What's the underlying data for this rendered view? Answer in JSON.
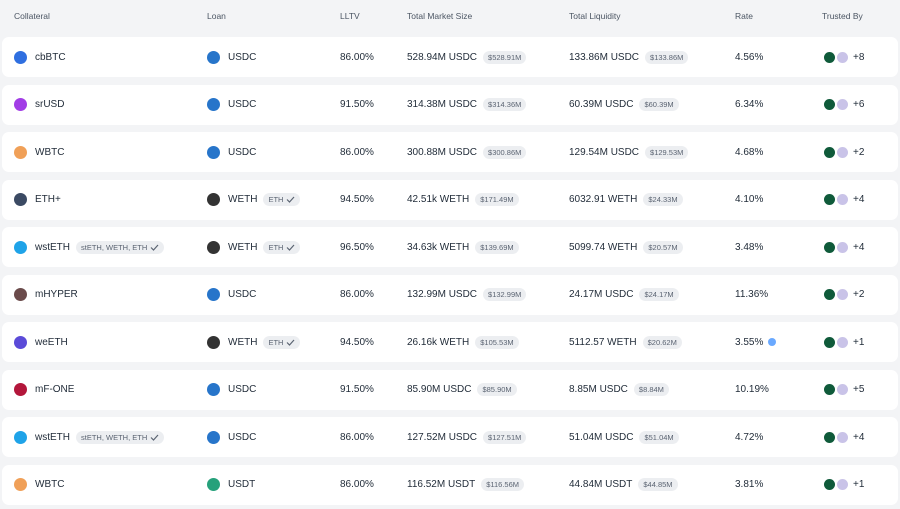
{
  "table": {
    "headers": [
      "Collateral",
      "Loan",
      "LLTV",
      "Total Market Size",
      "Total Liquidity",
      "Rate",
      "Trusted By"
    ],
    "rows": [
      {
        "collateral": "cbBTC",
        "loan": "USDC",
        "lltv": "86.00%",
        "market_size": "528.94M USDC",
        "market_size_usd": "$528.91M",
        "liquidity": "133.86M USDC",
        "liquidity_usd": "$133.86M",
        "rate": "4.56%",
        "trusted_more": "+8"
      },
      {
        "collateral": "srUSD",
        "loan": "USDC",
        "lltv": "91.50%",
        "market_size": "314.38M USDC",
        "market_size_usd": "$314.36M",
        "liquidity": "60.39M USDC",
        "liquidity_usd": "$60.39M",
        "rate": "6.34%",
        "trusted_more": "+6"
      },
      {
        "collateral": "WBTC",
        "loan": "USDC",
        "lltv": "86.00%",
        "market_size": "300.88M USDC",
        "market_size_usd": "$300.86M",
        "liquidity": "129.54M USDC",
        "liquidity_usd": "$129.53M",
        "rate": "4.68%",
        "trusted_more": "+2"
      },
      {
        "collateral": "ETH+",
        "loan": "WETH",
        "loan_tag": "ETH",
        "lltv": "94.50%",
        "market_size": "42.51k WETH",
        "market_size_usd": "$171.49M",
        "liquidity": "6032.91 WETH",
        "liquidity_usd": "$24.33M",
        "rate": "4.10%",
        "trusted_more": "+4"
      },
      {
        "collateral": "wstETH",
        "collateral_tag": "stETH, WETH, ETH",
        "loan": "WETH",
        "loan_tag": "ETH",
        "lltv": "96.50%",
        "market_size": "34.63k WETH",
        "market_size_usd": "$139.69M",
        "liquidity": "5099.74 WETH",
        "liquidity_usd": "$20.57M",
        "rate": "3.48%",
        "trusted_more": "+4"
      },
      {
        "collateral": "mHYPER",
        "loan": "USDC",
        "lltv": "86.00%",
        "market_size": "132.99M USDC",
        "market_size_usd": "$132.99M",
        "liquidity": "24.17M USDC",
        "liquidity_usd": "$24.17M",
        "rate": "11.36%",
        "trusted_more": "+2"
      },
      {
        "collateral": "weETH",
        "loan": "WETH",
        "loan_tag": "ETH",
        "lltv": "94.50%",
        "market_size": "26.16k WETH",
        "market_size_usd": "$105.53M",
        "liquidity": "5112.57 WETH",
        "liquidity_usd": "$20.62M",
        "rate": "3.55%",
        "trusted_more": "+1"
      },
      {
        "collateral": "mF-ONE",
        "loan": "USDC",
        "lltv": "91.50%",
        "market_size": "85.90M USDC",
        "market_size_usd": "$85.90M",
        "liquidity": "8.85M USDC",
        "liquidity_usd": "$8.84M",
        "rate": "10.19%",
        "trusted_more": "+5"
      },
      {
        "collateral": "wstETH",
        "collateral_tag": "stETH, WETH, ETH",
        "loan": "USDC",
        "lltv": "86.00%",
        "market_size": "127.52M USDC",
        "market_size_usd": "$127.51M",
        "liquidity": "51.04M USDC",
        "liquidity_usd": "$51.04M",
        "rate": "4.72%",
        "trusted_more": "+4"
      },
      {
        "collateral": "WBTC",
        "loan": "USDT",
        "lltv": "86.00%",
        "market_size": "116.52M USDT",
        "market_size_usd": "$116.56M",
        "liquidity": "44.84M USDT",
        "liquidity_usd": "$44.85M",
        "rate": "3.81%",
        "trusted_more": "+1"
      }
    ]
  }
}
